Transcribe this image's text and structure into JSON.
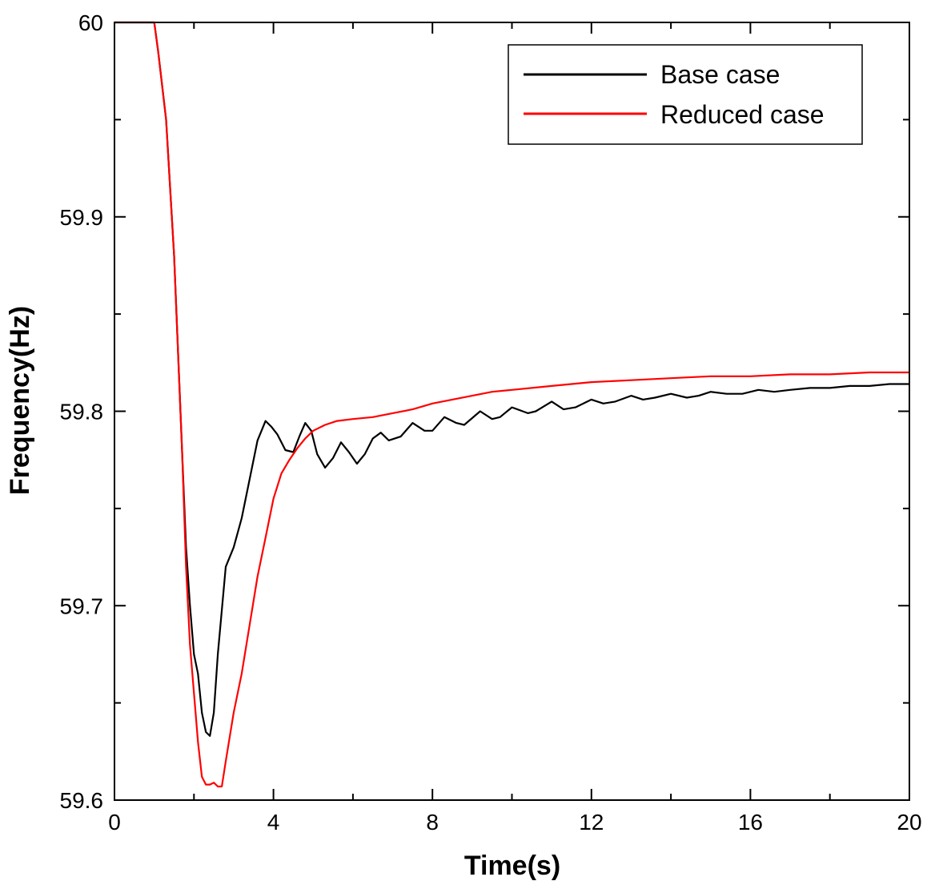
{
  "chart_data": {
    "type": "line",
    "title": "",
    "xlabel": "Time(s)",
    "ylabel": "Frequency(Hz)",
    "xlim": [
      0,
      20
    ],
    "ylim": [
      59.6,
      60.0
    ],
    "x_ticks": [
      0,
      4,
      8,
      12,
      16,
      20
    ],
    "x_minor_ticks": [
      2,
      6,
      10,
      14,
      18
    ],
    "x_tick_labels": [
      "0",
      "4",
      "8",
      "12",
      "16",
      "20"
    ],
    "y_ticks": [
      59.6,
      59.7,
      59.8,
      59.9,
      60.0
    ],
    "y_minor_ticks": [
      59.65,
      59.75,
      59.85,
      59.95
    ],
    "y_tick_labels": [
      "59.6",
      "59.7",
      "59.8",
      "59.9",
      "60"
    ],
    "grid": false,
    "legend_position": "top-right",
    "series": [
      {
        "name": "Base case",
        "color": "#000000",
        "points": [
          [
            0,
            60.0
          ],
          [
            1.0,
            60.0
          ],
          [
            1.1,
            59.985
          ],
          [
            1.3,
            59.95
          ],
          [
            1.5,
            59.88
          ],
          [
            1.7,
            59.78
          ],
          [
            1.8,
            59.73
          ],
          [
            1.9,
            59.7
          ],
          [
            2.0,
            59.675
          ],
          [
            2.1,
            59.665
          ],
          [
            2.2,
            59.645
          ],
          [
            2.3,
            59.635
          ],
          [
            2.4,
            59.633
          ],
          [
            2.5,
            59.645
          ],
          [
            2.6,
            59.675
          ],
          [
            2.8,
            59.72
          ],
          [
            3.0,
            59.73
          ],
          [
            3.2,
            59.745
          ],
          [
            3.4,
            59.765
          ],
          [
            3.6,
            59.785
          ],
          [
            3.8,
            59.795
          ],
          [
            3.95,
            59.792
          ],
          [
            4.1,
            59.788
          ],
          [
            4.3,
            59.78
          ],
          [
            4.5,
            59.779
          ],
          [
            4.65,
            59.787
          ],
          [
            4.8,
            59.794
          ],
          [
            4.95,
            59.79
          ],
          [
            5.1,
            59.778
          ],
          [
            5.3,
            59.771
          ],
          [
            5.5,
            59.776
          ],
          [
            5.7,
            59.784
          ],
          [
            5.9,
            59.779
          ],
          [
            6.1,
            59.773
          ],
          [
            6.3,
            59.778
          ],
          [
            6.5,
            59.786
          ],
          [
            6.7,
            59.789
          ],
          [
            6.9,
            59.785
          ],
          [
            7.2,
            59.787
          ],
          [
            7.5,
            59.794
          ],
          [
            7.8,
            59.79
          ],
          [
            8.0,
            59.79
          ],
          [
            8.3,
            59.797
          ],
          [
            8.6,
            59.794
          ],
          [
            8.8,
            59.793
          ],
          [
            9.2,
            59.8
          ],
          [
            9.5,
            59.796
          ],
          [
            9.7,
            59.797
          ],
          [
            10.0,
            59.802
          ],
          [
            10.4,
            59.799
          ],
          [
            10.6,
            59.8
          ],
          [
            11.0,
            59.805
          ],
          [
            11.3,
            59.801
          ],
          [
            11.6,
            59.802
          ],
          [
            12.0,
            59.806
          ],
          [
            12.3,
            59.804
          ],
          [
            12.6,
            59.805
          ],
          [
            13.0,
            59.808
          ],
          [
            13.3,
            59.806
          ],
          [
            13.6,
            59.807
          ],
          [
            14.0,
            59.809
          ],
          [
            14.4,
            59.807
          ],
          [
            14.7,
            59.808
          ],
          [
            15.0,
            59.81
          ],
          [
            15.4,
            59.809
          ],
          [
            15.8,
            59.809
          ],
          [
            16.2,
            59.811
          ],
          [
            16.6,
            59.81
          ],
          [
            17.0,
            59.811
          ],
          [
            17.5,
            59.812
          ],
          [
            18.0,
            59.812
          ],
          [
            18.5,
            59.813
          ],
          [
            19.0,
            59.813
          ],
          [
            19.5,
            59.814
          ],
          [
            20.0,
            59.814
          ]
        ]
      },
      {
        "name": "Reduced case",
        "color": "#ff0000",
        "points": [
          [
            0,
            60.0
          ],
          [
            1.0,
            60.0
          ],
          [
            1.1,
            59.985
          ],
          [
            1.3,
            59.95
          ],
          [
            1.5,
            59.88
          ],
          [
            1.7,
            59.78
          ],
          [
            1.8,
            59.72
          ],
          [
            1.9,
            59.68
          ],
          [
            2.0,
            59.655
          ],
          [
            2.1,
            59.63
          ],
          [
            2.2,
            59.612
          ],
          [
            2.3,
            59.608
          ],
          [
            2.4,
            59.608
          ],
          [
            2.5,
            59.609
          ],
          [
            2.6,
            59.607
          ],
          [
            2.7,
            59.607
          ],
          [
            2.8,
            59.62
          ],
          [
            3.0,
            59.645
          ],
          [
            3.2,
            59.665
          ],
          [
            3.4,
            59.69
          ],
          [
            3.6,
            59.715
          ],
          [
            3.8,
            59.735
          ],
          [
            4.0,
            59.755
          ],
          [
            4.2,
            59.768
          ],
          [
            4.4,
            59.775
          ],
          [
            4.6,
            59.781
          ],
          [
            4.8,
            59.786
          ],
          [
            5.0,
            59.79
          ],
          [
            5.3,
            59.793
          ],
          [
            5.6,
            59.795
          ],
          [
            6.0,
            59.796
          ],
          [
            6.5,
            59.797
          ],
          [
            7.0,
            59.799
          ],
          [
            7.5,
            59.801
          ],
          [
            8.0,
            59.804
          ],
          [
            8.5,
            59.806
          ],
          [
            9.0,
            59.808
          ],
          [
            9.5,
            59.81
          ],
          [
            10.0,
            59.811
          ],
          [
            11.0,
            59.813
          ],
          [
            12.0,
            59.815
          ],
          [
            13.0,
            59.816
          ],
          [
            14.0,
            59.817
          ],
          [
            15.0,
            59.818
          ],
          [
            16.0,
            59.818
          ],
          [
            17.0,
            59.819
          ],
          [
            18.0,
            59.819
          ],
          [
            19.0,
            59.82
          ],
          [
            20.0,
            59.82
          ]
        ]
      }
    ]
  }
}
